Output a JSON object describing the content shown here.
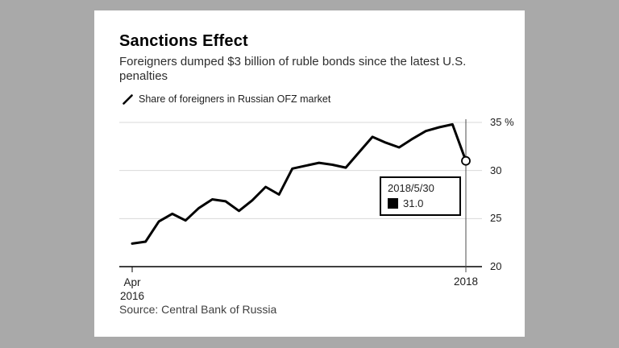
{
  "page": {
    "background_color": "#a9a9a9"
  },
  "card": {
    "title": "Sanctions Effect",
    "subtitle": "Foreigners dumped $3 billion of ruble bonds since the latest U.S. penalties",
    "legend": {
      "label": "Share of foreigners in Russian OFZ market",
      "color": "#000000"
    },
    "source": "Source: Central Bank of Russia"
  },
  "tooltip": {
    "date": "2018/5/30",
    "value": "31.0",
    "swatch_color": "#000000"
  },
  "chart_data": {
    "type": "line",
    "title": "Sanctions Effect",
    "subtitle": "Foreigners dumped $3 billion of ruble bonds since the latest U.S. penalties",
    "series_name": "Share of foreigners in Russian OFZ market",
    "line_color": "#000000",
    "x": [
      "Apr 2016",
      "May 2016",
      "Jun 2016",
      "Jul 2016",
      "Aug 2016",
      "Sep 2016",
      "Oct 2016",
      "Nov 2016",
      "Dec 2016",
      "Jan 2017",
      "Feb 2017",
      "Mar 2017",
      "Apr 2017",
      "May 2017",
      "Jun 2017",
      "Jul 2017",
      "Aug 2017",
      "Sep 2017",
      "Oct 2017",
      "Nov 2017",
      "Dec 2017",
      "Jan 2018",
      "Feb 2018",
      "Mar 2018",
      "Apr 2018",
      "May 2018"
    ],
    "values": [
      22.4,
      22.6,
      24.7,
      25.5,
      24.8,
      26.1,
      27.0,
      26.8,
      25.8,
      26.9,
      28.3,
      27.5,
      30.2,
      30.5,
      30.8,
      30.6,
      30.3,
      31.9,
      33.5,
      32.9,
      32.4,
      33.3,
      34.1,
      34.5,
      34.8,
      31.0
    ],
    "ylim": [
      20,
      35
    ],
    "yticks": [
      35,
      30,
      25,
      20
    ],
    "ytick_labels": [
      "35 %",
      "30",
      "25",
      "20"
    ],
    "xtick_left": {
      "line1": "Apr",
      "line2": "2016"
    },
    "xtick_right": "2018",
    "highlight": {
      "index": 25,
      "date": "2018/5/30",
      "value": 31.0
    },
    "grid": true,
    "legend_position": "top-left",
    "ylabel": "%",
    "source": "Source: Central Bank of Russia"
  }
}
